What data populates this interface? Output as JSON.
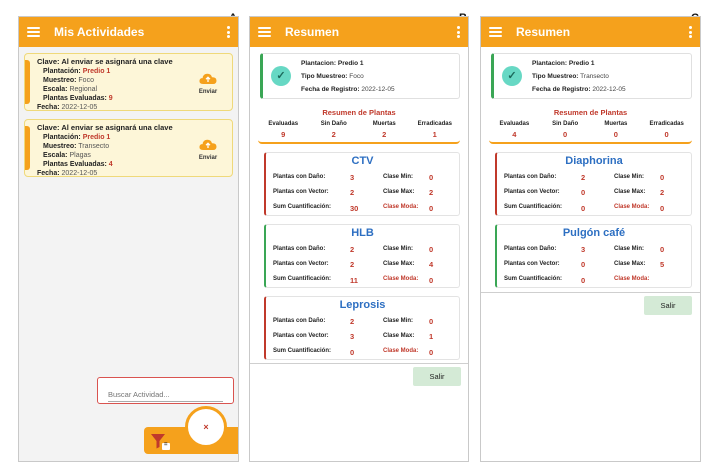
{
  "panels": [
    "A",
    "B",
    "C"
  ],
  "screenA": {
    "title": "Mis Actividades",
    "activities": [
      {
        "clave_label": "Clave:",
        "clave": "Al enviar se asignará una clave",
        "plantacion_label": "Plantación:",
        "plantacion": "Predio 1",
        "muestreo_label": "Muestreo:",
        "muestreo": "Foco",
        "escala_label": "Escala:",
        "escala": "Regional",
        "plantas_label": "Plantas Evaluadas:",
        "plantas": "9",
        "fecha_label": "Fecha:",
        "fecha": "2022-12-05",
        "enviar": "Enviar"
      },
      {
        "clave_label": "Clave:",
        "clave": "Al enviar se asignará una clave",
        "plantacion_label": "Plantación:",
        "plantacion": "Predio 1",
        "muestreo_label": "Muestreo:",
        "muestreo": "Transecto",
        "escala_label": "Escala:",
        "escala": "Plagas",
        "plantas_label": "Plantas Evaluadas:",
        "plantas": "4",
        "fecha_label": "Fecha:",
        "fecha": "2022-12-05",
        "enviar": "Enviar"
      }
    ],
    "search_placeholder": "Buscar Actividad...",
    "fab_close": "×",
    "filter_badge": "="
  },
  "labels": {
    "plantacion": "Plantacion:",
    "tipo": "Tipo Muestreo:",
    "fecha": "Fecha de Registro:",
    "resumen": "Resumen de Plantas",
    "evaluadas": "Evaluadas",
    "sin_dano": "Sin Daño",
    "muertas": "Muertas",
    "erradicadas": "Erradicadas",
    "dano": "Plantas con Daño:",
    "vector": "Plantas con Vector:",
    "sum": "Sum Cuantificación:",
    "min": "Clase Min:",
    "max": "Clase Max:",
    "moda": "Clase Moda:",
    "salir": "Salir"
  },
  "screenB": {
    "title": "Resumen",
    "plantacion": "Predio 1",
    "tipo": "Foco",
    "fecha": "2022-12-05",
    "evaluadas": "9",
    "sin_dano": "2",
    "muertas": "2",
    "erradicadas": "1",
    "pests": [
      {
        "name": "CTV",
        "dano": "3",
        "vector": "2",
        "sum": "30",
        "min": "0",
        "max": "2",
        "moda": "0"
      },
      {
        "name": "HLB",
        "dano": "2",
        "vector": "2",
        "sum": "11",
        "min": "0",
        "max": "4",
        "moda": "0"
      },
      {
        "name": "Leprosis",
        "dano": "2",
        "vector": "3",
        "sum": "0",
        "min": "0",
        "max": "1",
        "moda": "0"
      }
    ]
  },
  "screenC": {
    "title": "Resumen",
    "plantacion": "Predio 1",
    "tipo": "Transecto",
    "fecha": "2022-12-05",
    "evaluadas": "4",
    "sin_dano": "0",
    "muertas": "0",
    "erradicadas": "0",
    "pests": [
      {
        "name": "Diaphorina",
        "dano": "2",
        "vector": "0",
        "sum": "0",
        "min": "0",
        "max": "2",
        "moda": "0"
      },
      {
        "name": "Pulgón café",
        "dano": "3",
        "vector": "0",
        "sum": "0",
        "min": "0",
        "max": "5",
        "moda": ""
      }
    ]
  },
  "colors": {
    "accent": "#f5a11c",
    "red": "#c0392b",
    "blue": "#2d6fc2",
    "green": "#3aa655"
  }
}
